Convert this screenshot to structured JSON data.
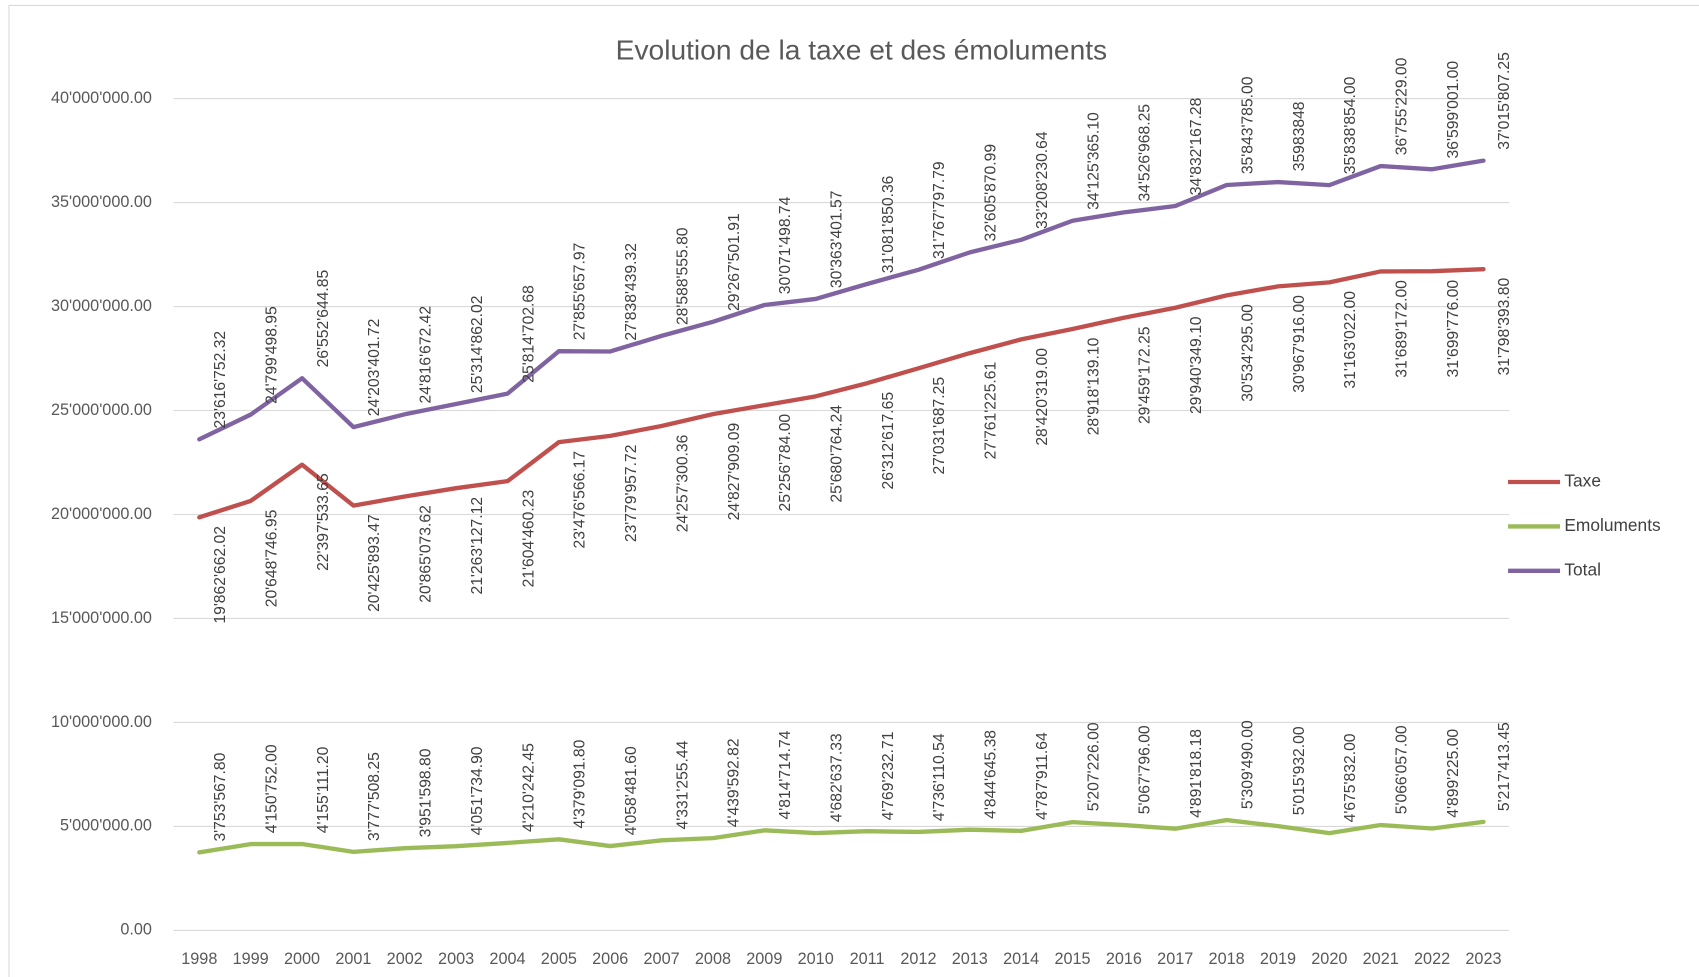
{
  "chart_data": {
    "type": "line",
    "title": "Evolution de la taxe et des émoluments",
    "categories": [
      "1998",
      "1999",
      "2000",
      "2001",
      "2002",
      "2003",
      "2004",
      "2005",
      "2006",
      "2007",
      "2008",
      "2009",
      "2010",
      "2011",
      "2012",
      "2013",
      "2014",
      "2015",
      "2016",
      "2017",
      "2018",
      "2019",
      "2020",
      "2021",
      "2022",
      "2023"
    ],
    "series": [
      {
        "name": "Taxe",
        "color": "#c0504d",
        "values": [
          19862662.02,
          20648746.95,
          22397533.65,
          20425893.47,
          20865073.62,
          21263127.12,
          21604460.23,
          23476566.17,
          23779957.72,
          24257300.36,
          24827909.09,
          25256784.0,
          25680764.24,
          26312617.65,
          27031687.25,
          27761225.61,
          28420319.0,
          28918139.1,
          29459172.25,
          29940349.1,
          30534295.0,
          30967916.0,
          31163022.0,
          31689172.0,
          31699776.0,
          31798393.8
        ],
        "value_labels": [
          "19'862'662.02",
          "20'648'746.95",
          "22'397'533.65",
          "20'425'893.47",
          "20'865'073.62",
          "21'263'127.12",
          "21'604'460.23",
          "23'476'566.17",
          "23'779'957.72",
          "24'257'300.36",
          "24'827'909.09",
          "25'256'784.00",
          "25'680'764.24",
          "26'312'617.65",
          "27'031'687.25",
          "27'761'225.61",
          "28'420'319.00",
          "28'918'139.10",
          "29'459'172.25",
          "29'940'349.10",
          "30'534'295.00",
          "30'967'916.00",
          "31'163'022.00",
          "31'689'172.00",
          "31'699'776.00",
          "31'798'393.80"
        ]
      },
      {
        "name": "Emoluments",
        "color": "#9bbb59",
        "values": [
          3753567.8,
          4150752.0,
          4155111.2,
          3777508.25,
          3951598.8,
          4051734.9,
          4210242.45,
          4379091.8,
          4058481.6,
          4331255.44,
          4439592.82,
          4814714.74,
          4682637.33,
          4769232.71,
          4736110.54,
          4844645.38,
          4787911.64,
          5207226.0,
          5067796.0,
          4891818.18,
          5309490.0,
          5015932.0,
          4675832.0,
          5066057.0,
          4899225.0,
          5217413.45
        ],
        "value_labels": [
          "3'753'567.80",
          "4'150'752.00",
          "4'155'111.20",
          "3'777'508.25",
          "3'951'598.80",
          "4'051'734.90",
          "4'210'242.45",
          "4'379'091.80",
          "4'058'481.60",
          "4'331'255.44",
          "4'439'592.82",
          "4'814'714.74",
          "4'682'637.33",
          "4'769'232.71",
          "4'736'110.54",
          "4'844'645.38",
          "4'787'911.64",
          "5'207'226.00",
          "5'067'796.00",
          "4'891'818.18",
          "5'309'490.00",
          "5'015'932.00",
          "4'675'832.00",
          "5'066'057.00",
          "4'899'225.00",
          "5'217'413.45"
        ]
      },
      {
        "name": "Total",
        "color": "#8064a2",
        "values": [
          23616752.32,
          24799498.95,
          26552644.85,
          24203401.72,
          24816672.42,
          25314862.02,
          25814702.68,
          27855657.97,
          27838439.32,
          28588555.8,
          29267501.91,
          30071498.74,
          30363401.57,
          31081850.36,
          31767797.79,
          32605870.99,
          33208230.64,
          34125365.1,
          34526968.25,
          34832167.28,
          35843785.0,
          35983848,
          35838854.0,
          36755229.0,
          36599001.0,
          37015807.25
        ],
        "value_labels": [
          "23'616'752.32",
          "24'799'498.95",
          "26'552'644.85",
          "24'203'401.72",
          "24'816'672.42",
          "25'314'862.02",
          "25'814'702.68",
          "27'855'657.97",
          "27'838'439.32",
          "28'588'555.80",
          "29'267'501.91",
          "30'071'498.74",
          "30'363'401.57",
          "31'081'850.36",
          "31'767'797.79",
          "32'605'870.99",
          "33'208'230.64",
          "34'125'365.10",
          "34'526'968.25",
          "34'832'167.28",
          "35'843'785.00",
          "35983848",
          "35'838'854.00",
          "36'755'229.00",
          "36'599'001.00",
          "37'015'807.25"
        ]
      }
    ],
    "ylim": [
      0,
      40000000
    ],
    "yticks": [
      {
        "value": 0,
        "label": "0.00"
      },
      {
        "value": 5000000,
        "label": "5'000'000.00"
      },
      {
        "value": 10000000,
        "label": "10'000'000.00"
      },
      {
        "value": 15000000,
        "label": "15'000'000.00"
      },
      {
        "value": 20000000,
        "label": "20'000'000.00"
      },
      {
        "value": 25000000,
        "label": "25'000'000.00"
      },
      {
        "value": 30000000,
        "label": "30'000'000.00"
      },
      {
        "value": 35000000,
        "label": "35'000'000.00"
      },
      {
        "value": 40000000,
        "label": "40'000'000.00"
      }
    ],
    "grid": true,
    "legend": "right"
  }
}
